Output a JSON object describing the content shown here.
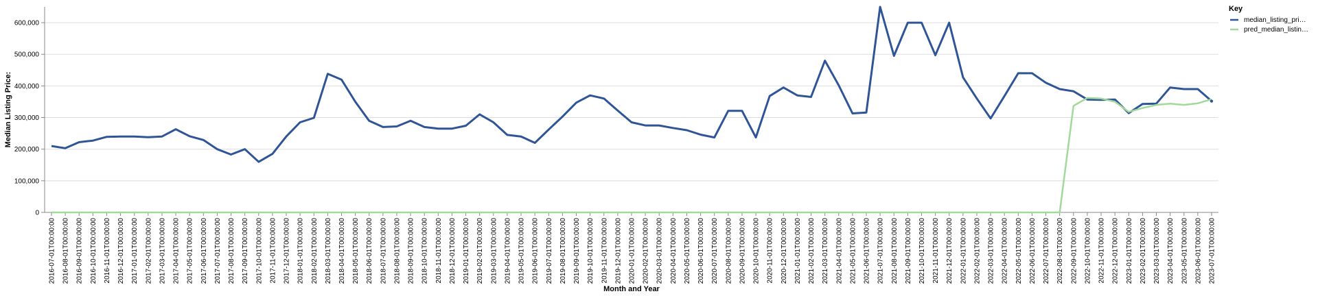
{
  "chart_data": {
    "type": "line",
    "title": "",
    "xlabel": "Month and Year",
    "ylabel": "Median Listing Price:",
    "ylim": [
      0,
      650000
    ],
    "yticks": [
      0,
      100000,
      200000,
      300000,
      400000,
      500000,
      600000
    ],
    "ytick_labels": [
      "0",
      "100,000",
      "200,000",
      "300,000",
      "400,000",
      "500,000",
      "600,000"
    ],
    "grid": true,
    "legend": {
      "title": "Key",
      "placement": "right",
      "entries": [
        "median_listing_pri…",
        "pred_median_listin…"
      ]
    },
    "x": [
      "2016-07-01T00:00:00",
      "2016-08-01T00:00:00",
      "2016-09-01T00:00:00",
      "2016-10-01T00:00:00",
      "2016-11-01T00:00:00",
      "2016-12-01T00:00:00",
      "2017-01-01T00:00:00",
      "2017-02-01T00:00:00",
      "2017-03-01T00:00:00",
      "2017-04-01T00:00:00",
      "2017-05-01T00:00:00",
      "2017-06-01T00:00:00",
      "2017-07-01T00:00:00",
      "2017-08-01T00:00:00",
      "2017-09-01T00:00:00",
      "2017-10-01T00:00:00",
      "2017-11-01T00:00:00",
      "2017-12-01T00:00:00",
      "2018-01-01T00:00:00",
      "2018-02-01T00:00:00",
      "2018-03-01T00:00:00",
      "2018-04-01T00:00:00",
      "2018-05-01T00:00:00",
      "2018-06-01T00:00:00",
      "2018-07-01T00:00:00",
      "2018-08-01T00:00:00",
      "2018-09-01T00:00:00",
      "2018-10-01T00:00:00",
      "2018-11-01T00:00:00",
      "2018-12-01T00:00:00",
      "2019-01-01T00:00:00",
      "2019-02-01T00:00:00",
      "2019-03-01T00:00:00",
      "2019-04-01T00:00:00",
      "2019-05-01T00:00:00",
      "2019-06-01T00:00:00",
      "2019-07-01T00:00:00",
      "2019-08-01T00:00:00",
      "2019-09-01T00:00:00",
      "2019-10-01T00:00:00",
      "2019-11-01T00:00:00",
      "2019-12-01T00:00:00",
      "2020-01-01T00:00:00",
      "2020-02-01T00:00:00",
      "2020-03-01T00:00:00",
      "2020-04-01T00:00:00",
      "2020-05-01T00:00:00",
      "2020-06-01T00:00:00",
      "2020-07-01T00:00:00",
      "2020-08-01T00:00:00",
      "2020-09-01T00:00:00",
      "2020-10-01T00:00:00",
      "2020-11-01T00:00:00",
      "2020-12-01T00:00:00",
      "2021-01-01T00:00:00",
      "2021-02-01T00:00:00",
      "2021-03-01T00:00:00",
      "2021-04-01T00:00:00",
      "2021-05-01T00:00:00",
      "2021-06-01T00:00:00",
      "2021-07-01T00:00:00",
      "2021-08-01T00:00:00",
      "2021-09-01T00:00:00",
      "2021-10-01T00:00:00",
      "2021-11-01T00:00:00",
      "2021-12-01T00:00:00",
      "2022-01-01T00:00:00",
      "2022-02-01T00:00:00",
      "2022-03-01T00:00:00",
      "2022-04-01T00:00:00",
      "2022-05-01T00:00:00",
      "2022-06-01T00:00:00",
      "2022-07-01T00:00:00",
      "2022-08-01T00:00:00",
      "2022-09-01T00:00:00",
      "2022-10-01T00:00:00",
      "2022-11-01T00:00:00",
      "2022-12-01T00:00:00",
      "2023-01-01T00:00:00",
      "2023-02-01T00:00:00",
      "2023-03-01T00:00:00",
      "2023-04-01T00:00:00",
      "2023-05-01T00:00:00",
      "2023-06-01T00:00:00",
      "2023-07-01T00:00:00"
    ],
    "series": [
      {
        "name": "median_listing_pri…",
        "color": "#2f5597",
        "values": [
          210000,
          203000,
          222000,
          227000,
          239000,
          240000,
          240000,
          238000,
          240000,
          263000,
          241000,
          229000,
          200000,
          183000,
          200000,
          160000,
          185000,
          240000,
          285000,
          299000,
          438000,
          420000,
          350000,
          290000,
          270000,
          272000,
          290000,
          270000,
          265000,
          265000,
          274000,
          310000,
          285000,
          245000,
          240000,
          220000,
          262000,
          303000,
          347000,
          370000,
          360000,
          322000,
          285000,
          275000,
          275000,
          267000,
          260000,
          246000,
          237000,
          321000,
          321000,
          237000,
          368000,
          395000,
          370000,
          365000,
          480000,
          402000,
          313000,
          316000,
          650000,
          495000,
          600000,
          600000,
          497000,
          600000,
          427000,
          360000,
          297000,
          368000,
          440000,
          440000,
          410000,
          390000,
          383000,
          357000,
          356000,
          357000,
          314000,
          343000,
          344000,
          395000,
          390000,
          390000,
          352000
        ]
      },
      {
        "name": "pred_median_listin…",
        "color": "#a1d99b",
        "values": [
          0,
          0,
          0,
          0,
          0,
          0,
          0,
          0,
          0,
          0,
          0,
          0,
          0,
          0,
          0,
          0,
          0,
          0,
          0,
          0,
          0,
          0,
          0,
          0,
          0,
          0,
          0,
          0,
          0,
          0,
          0,
          0,
          0,
          0,
          0,
          0,
          0,
          0,
          0,
          0,
          0,
          0,
          0,
          0,
          0,
          0,
          0,
          0,
          0,
          0,
          0,
          0,
          0,
          0,
          0,
          0,
          0,
          0,
          0,
          0,
          0,
          0,
          0,
          0,
          0,
          0,
          0,
          0,
          0,
          0,
          0,
          0,
          0,
          0,
          337000,
          362000,
          360000,
          350000,
          318000,
          330000,
          340000,
          344000,
          340000,
          345000,
          358000
        ]
      }
    ]
  }
}
